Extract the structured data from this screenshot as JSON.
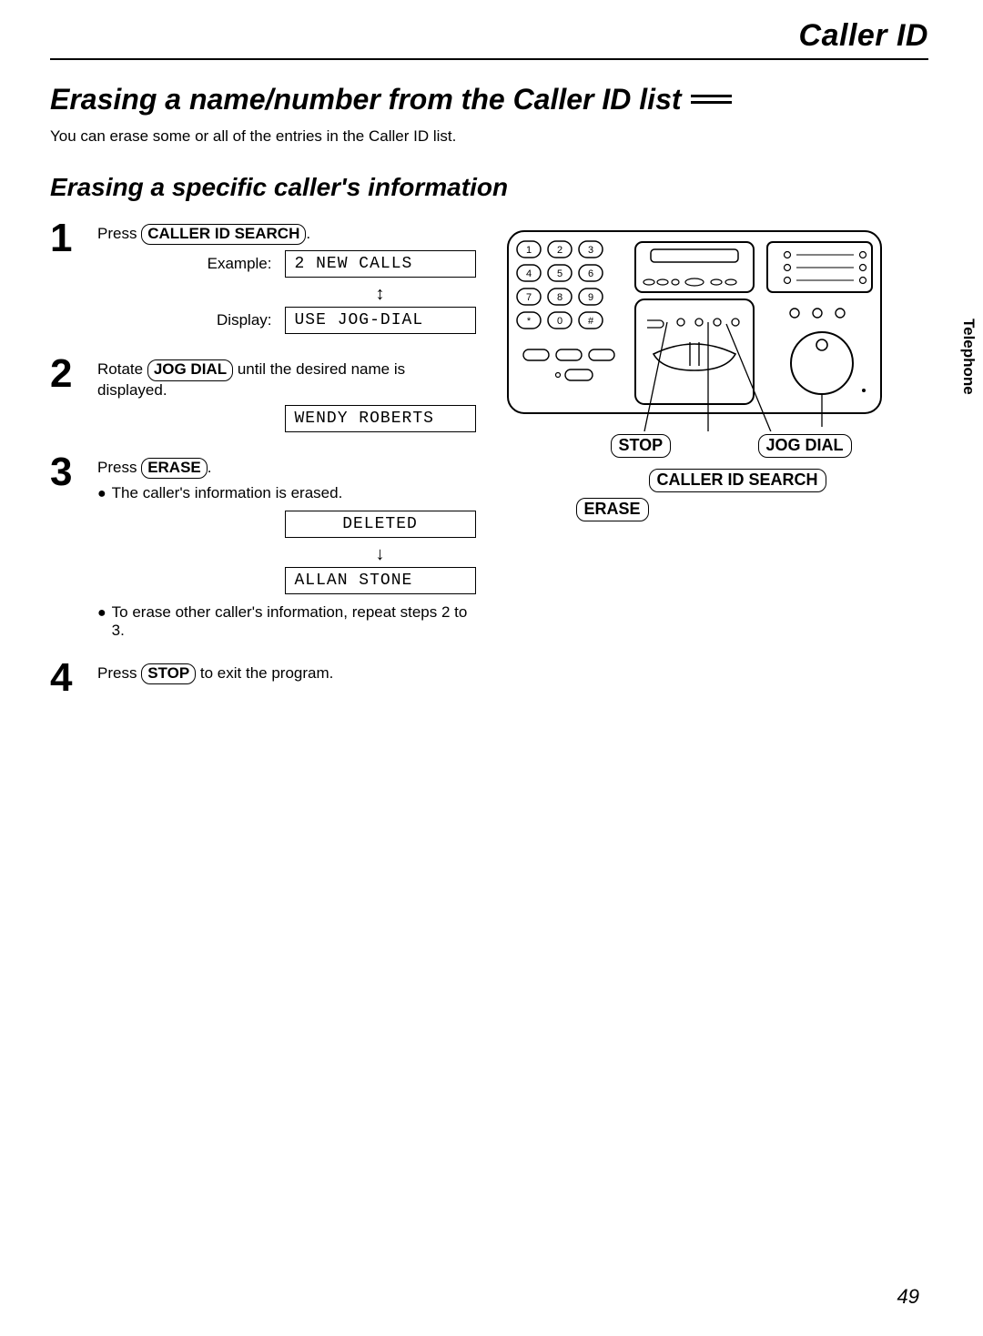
{
  "header": {
    "category": "Caller ID"
  },
  "title": "Erasing a name/number from the Caller ID list",
  "intro": "You can erase some or all of the entries in the Caller ID list.",
  "subsection": "Erasing a specific caller's information",
  "buttons": {
    "caller_id_search": "CALLER ID SEARCH",
    "jog_dial": "JOG DIAL",
    "erase": "ERASE",
    "stop": "STOP"
  },
  "steps": {
    "s1": {
      "num": "1",
      "text_prefix": "Press ",
      "example_label": "Example:",
      "example_value": "2 NEW CALLS",
      "display_label": "Display:",
      "display_value": "USE JOG-DIAL"
    },
    "s2": {
      "num": "2",
      "text_prefix": "Rotate ",
      "text_suffix": " until the desired name is displayed.",
      "display_value": "WENDY ROBERTS"
    },
    "s3": {
      "num": "3",
      "text_prefix": "Press ",
      "bullet1": "The caller's information is erased.",
      "display1": "DELETED",
      "display2": "ALLAN STONE",
      "bullet2": "To erase other caller's information, repeat steps 2 to 3."
    },
    "s4": {
      "num": "4",
      "text_prefix": "Press ",
      "text_suffix": " to exit the program."
    }
  },
  "side_tab": "Telephone",
  "page_number": "49",
  "diagram": {
    "keypad": [
      "1",
      "2",
      "3",
      "4",
      "5",
      "6",
      "7",
      "8",
      "9",
      "*",
      "0",
      "#"
    ]
  }
}
